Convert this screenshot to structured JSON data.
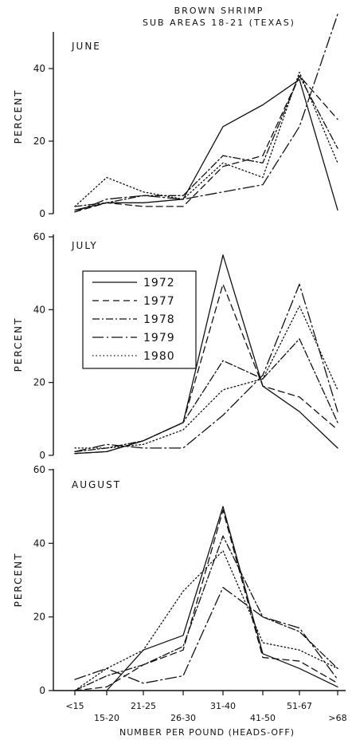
{
  "title_line1": "BROWN SHRIMP",
  "title_line2": "SUB AREAS 18-21 (TEXAS)",
  "chart_data": {
    "type": "line",
    "xlabel": "NUMBER PER POUND (HEADS-OFF)",
    "categories": [
      "<15",
      "15-20",
      "21-25",
      "26-30",
      "31-40",
      "41-50",
      "51-67",
      ">68"
    ],
    "series_styles": [
      {
        "year": "1972",
        "dash": ""
      },
      {
        "year": "1977",
        "dash": "8,5"
      },
      {
        "year": "1978",
        "dash": "9,3,2,3"
      },
      {
        "year": "1979",
        "dash": "14,4,2,4"
      },
      {
        "year": "1980",
        "dash": "1.5,3"
      }
    ],
    "legend": [
      "1972",
      "1977",
      "1978",
      "1979",
      "1980"
    ],
    "panels": [
      {
        "title": "JUNE",
        "ylabel": "PERCENT",
        "ylim": [
          0,
          50
        ],
        "yticks": [
          0,
          20,
          40
        ],
        "series": [
          {
            "name": "1972",
            "values": [
              1,
              3,
              3,
              4,
              24,
              30,
              37,
              1
            ]
          },
          {
            "name": "1977",
            "values": [
              0.5,
              3,
              2,
              2,
              13,
              16,
              38,
              26
            ]
          },
          {
            "name": "1978",
            "values": [
              2,
              3,
              5,
              5,
              16,
              14,
              38,
              18
            ]
          },
          {
            "name": "1979",
            "values": [
              0.5,
              4,
              5,
              4,
              6,
              8,
              24,
              55
            ]
          },
          {
            "name": "1980",
            "values": [
              2,
              10,
              6,
              4,
              14,
              10,
              39,
              14
            ]
          }
        ]
      },
      {
        "title": "JULY",
        "ylabel": "PERCENT",
        "ylim": [
          0,
          60
        ],
        "yticks": [
          0,
          20,
          40,
          60
        ],
        "series": [
          {
            "name": "1972",
            "values": [
              0.5,
              1,
              4,
              9,
              55,
              19,
              12,
              2
            ]
          },
          {
            "name": "1977",
            "values": [
              0.5,
              1,
              4,
              9,
              47,
              19,
              16,
              7
            ]
          },
          {
            "name": "1978",
            "values": [
              1,
              2,
              4,
              9,
              26,
              21,
              32,
              9
            ]
          },
          {
            "name": "1979",
            "values": [
              1,
              3,
              2,
              2,
              11,
              22,
              47,
              12
            ]
          },
          {
            "name": "1980",
            "values": [
              2,
              2,
              3,
              7,
              18,
              21,
              41,
              18
            ]
          }
        ]
      },
      {
        "title": "AUGUST",
        "ylabel": "PERCENT",
        "ylim": [
          0,
          60
        ],
        "yticks": [
          0,
          20,
          40,
          60
        ],
        "series": [
          {
            "name": "1972",
            "values": [
              0,
              0,
              11,
              15,
              50,
              10,
              6,
              1
            ]
          },
          {
            "name": "1977",
            "values": [
              0,
              1,
              7,
              11,
              49,
              9,
              8,
              2
            ]
          },
          {
            "name": "1978",
            "values": [
              0,
              4,
              7,
              12,
              42,
              20,
              16,
              6
            ]
          },
          {
            "name": "1979",
            "values": [
              3,
              6,
              2,
              4,
              28,
              20,
              17,
              3
            ]
          },
          {
            "name": "1980",
            "values": [
              0,
              6,
              11,
              27,
              38,
              13,
              11,
              6
            ]
          }
        ]
      }
    ]
  }
}
